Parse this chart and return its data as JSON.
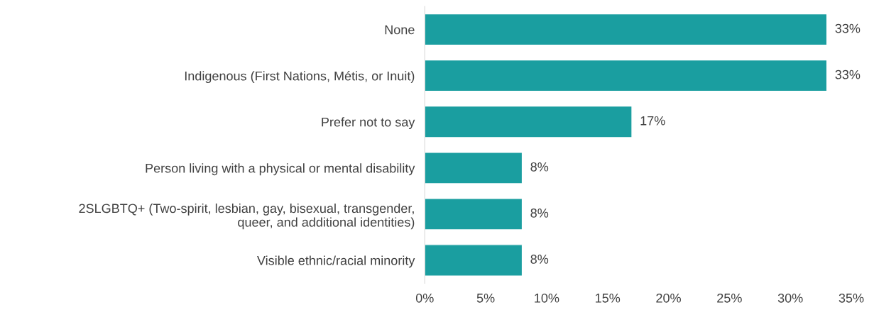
{
  "chart_data": {
    "type": "bar",
    "orientation": "horizontal",
    "categories": [
      "None",
      "Indigenous (First Nations, Métis, or Inuit)",
      "Prefer not to say",
      "Person living with a physical or mental disability",
      "2SLGBTQ+ (Two-spirit, lesbian, gay, bisexual, transgender,\nqueer, and additional identities)",
      "Visible ethnic/racial minority"
    ],
    "series": [
      {
        "color": "#1a9ea0",
        "values": [
          33,
          33,
          17,
          8,
          8,
          8
        ],
        "value_labels": [
          "33%",
          "33%",
          "17%",
          "8%",
          "8%",
          "8%"
        ]
      }
    ],
    "xlim": [
      0,
      35
    ],
    "xticks": [
      {
        "value": 0,
        "label": "0%"
      },
      {
        "value": 5,
        "label": "5%"
      },
      {
        "value": 10,
        "label": "10%"
      },
      {
        "value": 15,
        "label": "15%"
      },
      {
        "value": 20,
        "label": "20%"
      },
      {
        "value": 25,
        "label": "25%"
      },
      {
        "value": 30,
        "label": "30%"
      },
      {
        "value": 35,
        "label": "35%"
      }
    ],
    "grid": false,
    "legend": false
  }
}
